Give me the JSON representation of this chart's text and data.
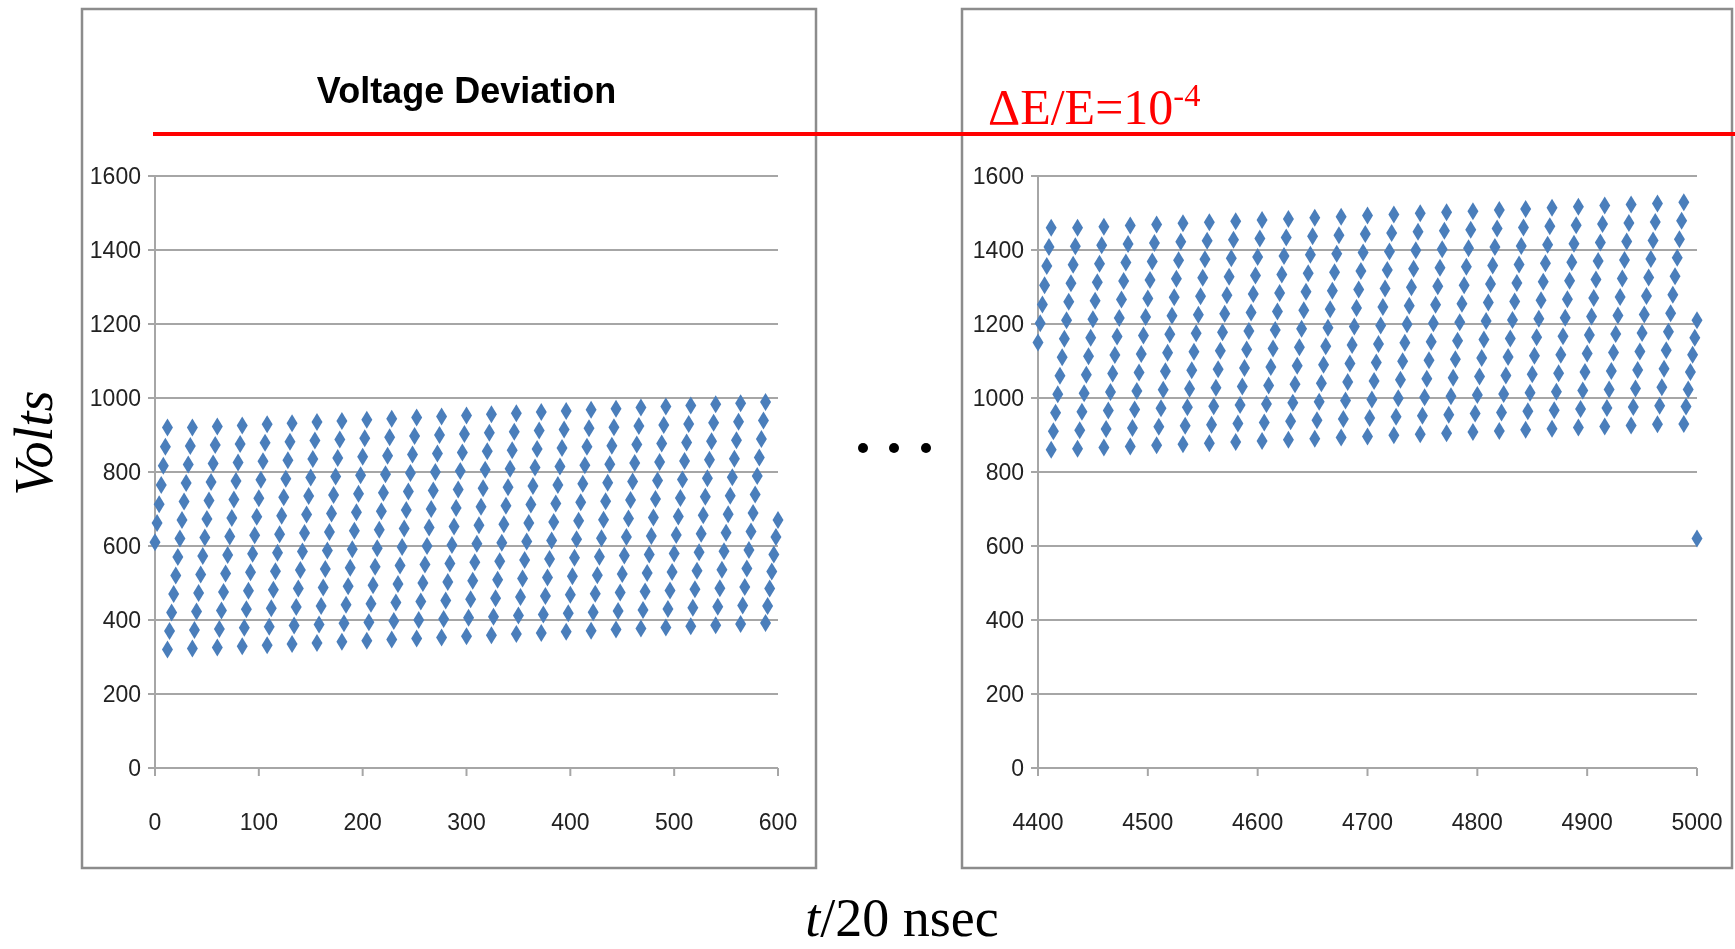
{
  "chart_data": [
    {
      "type": "scatter",
      "title": "Voltage Deviation",
      "xlabel": "t/20 nsec",
      "ylabel": "Volts",
      "xlim": [
        0,
        600
      ],
      "ylim": [
        0,
        1600
      ],
      "xticks": [
        0,
        100,
        200,
        300,
        400,
        500,
        600
      ],
      "yticks": [
        0,
        200,
        400,
        600,
        800,
        1000,
        1200,
        1400,
        1600
      ],
      "grid": "y",
      "marker": "diamond",
      "series": [
        {
          "color": "#4a7ebb",
          "x": [
            0,
            2,
            4,
            6,
            8,
            10,
            12,
            12,
            14,
            16,
            18,
            20,
            22,
            24,
            26,
            28,
            30,
            32,
            34,
            36,
            36,
            38,
            40,
            42,
            44,
            46,
            48,
            50,
            52,
            54,
            56,
            58,
            60,
            60,
            62,
            64,
            66,
            68,
            70,
            72,
            74,
            76,
            78,
            80,
            82,
            84,
            84,
            86,
            88,
            90,
            92,
            94,
            96,
            98,
            100,
            102,
            104,
            106,
            108,
            108,
            110,
            112,
            114,
            116,
            118,
            120,
            122,
            124,
            126,
            128,
            130,
            132,
            132,
            134,
            136,
            138,
            140,
            142,
            144,
            146,
            148,
            150,
            152,
            154,
            156,
            156,
            158,
            160,
            162,
            164,
            166,
            168,
            170,
            172,
            174,
            176,
            178,
            180,
            180,
            182,
            184,
            186,
            188,
            190,
            192,
            194,
            196,
            198,
            200,
            202,
            204,
            204,
            206,
            208,
            210,
            212,
            214,
            216,
            218,
            220,
            222,
            224,
            226,
            228,
            228,
            230,
            232,
            234,
            236,
            238,
            240,
            242,
            244,
            246,
            248,
            250,
            252,
            252,
            254,
            256,
            258,
            260,
            262,
            264,
            266,
            268,
            270,
            272,
            274,
            276,
            276,
            278,
            280,
            282,
            284,
            286,
            288,
            290,
            292,
            294,
            296,
            298,
            300,
            300,
            302,
            304,
            306,
            308,
            310,
            312,
            314,
            316,
            318,
            320,
            322,
            324,
            324,
            326,
            328,
            330,
            332,
            334,
            336,
            338,
            340,
            342,
            344,
            346,
            348,
            348,
            350,
            352,
            354,
            356,
            358,
            360,
            362,
            364,
            366,
            368,
            370,
            372,
            372,
            374,
            376,
            378,
            380,
            382,
            384,
            386,
            388,
            390,
            392,
            394,
            396,
            396,
            398,
            400,
            402,
            404,
            406,
            408,
            410,
            412,
            414,
            416,
            418,
            420,
            420,
            422,
            424,
            426,
            428,
            430,
            432,
            434,
            436,
            438,
            440,
            442,
            444,
            444,
            446,
            448,
            450,
            452,
            454,
            456,
            458,
            460,
            462,
            464,
            466,
            468,
            468,
            470,
            472,
            474,
            476,
            478,
            480,
            482,
            484,
            486,
            488,
            490,
            492,
            492,
            494,
            496,
            498,
            500,
            502,
            504,
            506,
            508,
            510,
            512,
            514,
            516,
            516,
            518,
            520,
            522,
            524,
            526,
            528,
            530,
            532,
            534,
            536,
            538,
            540,
            540,
            542,
            544,
            546,
            548,
            550,
            552,
            554,
            556,
            558,
            560,
            562,
            564,
            564,
            566,
            568,
            570,
            572,
            574,
            576,
            578,
            580,
            582,
            584,
            586,
            588,
            588,
            590,
            592,
            594,
            596,
            598,
            600
          ],
          "values": [
            610,
            662,
            713,
            765,
            817,
            868,
            920,
            320,
            370,
            420,
            470,
            520,
            570,
            620,
            670,
            720,
            770,
            820,
            870,
            920,
            323,
            373,
            423,
            473,
            523,
            573,
            623,
            673,
            723,
            773,
            823,
            873,
            923,
            326,
            376,
            426,
            476,
            526,
            576,
            626,
            676,
            726,
            776,
            826,
            876,
            926,
            329,
            379,
            429,
            479,
            529,
            579,
            629,
            679,
            729,
            779,
            829,
            879,
            929,
            332,
            382,
            432,
            482,
            532,
            582,
            632,
            682,
            732,
            782,
            832,
            882,
            932,
            335,
            385,
            435,
            485,
            535,
            585,
            635,
            685,
            735,
            785,
            835,
            885,
            935,
            338,
            388,
            438,
            488,
            538,
            588,
            638,
            688,
            738,
            788,
            838,
            888,
            938,
            341,
            391,
            441,
            491,
            541,
            591,
            641,
            691,
            741,
            791,
            841,
            891,
            941,
            344,
            394,
            444,
            494,
            544,
            594,
            644,
            694,
            744,
            794,
            844,
            894,
            944,
            347,
            397,
            447,
            497,
            547,
            597,
            647,
            697,
            747,
            797,
            847,
            897,
            947,
            350,
            400,
            450,
            500,
            550,
            600,
            650,
            700,
            750,
            800,
            850,
            900,
            950,
            353,
            403,
            453,
            503,
            553,
            603,
            653,
            703,
            753,
            803,
            853,
            903,
            953,
            356,
            406,
            456,
            506,
            556,
            606,
            656,
            706,
            756,
            806,
            856,
            906,
            956,
            359,
            409,
            459,
            509,
            559,
            609,
            659,
            709,
            759,
            809,
            859,
            909,
            959,
            362,
            412,
            462,
            512,
            562,
            612,
            662,
            712,
            762,
            812,
            862,
            912,
            962,
            365,
            415,
            465,
            515,
            565,
            615,
            665,
            715,
            765,
            815,
            865,
            915,
            965,
            368,
            418,
            468,
            518,
            568,
            618,
            668,
            718,
            768,
            818,
            868,
            918,
            968,
            371,
            421,
            471,
            521,
            571,
            621,
            671,
            721,
            771,
            821,
            871,
            921,
            971,
            374,
            424,
            474,
            524,
            574,
            624,
            674,
            724,
            774,
            824,
            874,
            924,
            974,
            377,
            427,
            477,
            527,
            577,
            627,
            677,
            727,
            777,
            827,
            877,
            927,
            977,
            380,
            430,
            480,
            530,
            580,
            630,
            680,
            730,
            780,
            830,
            880,
            930,
            980,
            383,
            433,
            483,
            533,
            583,
            633,
            683,
            733,
            783,
            833,
            883,
            933,
            983,
            386,
            436,
            486,
            536,
            586,
            636,
            686,
            736,
            786,
            836,
            886,
            936,
            986,
            389,
            439,
            489,
            539,
            589,
            639,
            689,
            739,
            789,
            839,
            889,
            939,
            989,
            392,
            438,
            485,
            531,
            577,
            624,
            670
          ]
        }
      ]
    },
    {
      "type": "scatter",
      "annotations": [
        "ΔE/E=10$^{-4}$"
      ],
      "xlim": [
        4400,
        5000
      ],
      "ylim": [
        0,
        1600
      ],
      "xticks": [
        4400,
        4500,
        4600,
        4700,
        4800,
        4900,
        5000
      ],
      "yticks": [
        0,
        200,
        400,
        600,
        800,
        1000,
        1200,
        1400,
        1600
      ],
      "grid": "y",
      "marker": "diamond",
      "series": [
        {
          "color": "#4a7ebb",
          "x": [
            4400,
            4402,
            4404,
            4406,
            4408,
            4410,
            4412,
            4412,
            4414,
            4416,
            4418,
            4420,
            4422,
            4424,
            4426,
            4428,
            4430,
            4432,
            4434,
            4436,
            4436,
            4438,
            4440,
            4442,
            4444,
            4446,
            4448,
            4450,
            4452,
            4454,
            4456,
            4458,
            4460,
            4460,
            4462,
            4464,
            4466,
            4468,
            4470,
            4472,
            4474,
            4476,
            4478,
            4480,
            4482,
            4484,
            4484,
            4486,
            4488,
            4490,
            4492,
            4494,
            4496,
            4498,
            4500,
            4502,
            4504,
            4506,
            4508,
            4508,
            4510,
            4512,
            4514,
            4516,
            4518,
            4520,
            4522,
            4524,
            4526,
            4528,
            4530,
            4532,
            4532,
            4534,
            4536,
            4538,
            4540,
            4542,
            4544,
            4546,
            4548,
            4550,
            4552,
            4554,
            4556,
            4556,
            4558,
            4560,
            4562,
            4564,
            4566,
            4568,
            4570,
            4572,
            4574,
            4576,
            4578,
            4580,
            4580,
            4582,
            4584,
            4586,
            4588,
            4590,
            4592,
            4594,
            4596,
            4598,
            4600,
            4602,
            4604,
            4604,
            4606,
            4608,
            4610,
            4612,
            4614,
            4616,
            4618,
            4620,
            4622,
            4624,
            4626,
            4628,
            4628,
            4630,
            4632,
            4634,
            4636,
            4638,
            4640,
            4642,
            4644,
            4646,
            4648,
            4650,
            4652,
            4652,
            4654,
            4656,
            4658,
            4660,
            4662,
            4664,
            4666,
            4668,
            4670,
            4672,
            4674,
            4676,
            4676,
            4678,
            4680,
            4682,
            4684,
            4686,
            4688,
            4690,
            4692,
            4694,
            4696,
            4698,
            4700,
            4700,
            4702,
            4704,
            4706,
            4708,
            4710,
            4712,
            4714,
            4716,
            4718,
            4720,
            4722,
            4724,
            4724,
            4726,
            4728,
            4730,
            4732,
            4734,
            4736,
            4738,
            4740,
            4742,
            4744,
            4746,
            4748,
            4748,
            4750,
            4752,
            4754,
            4756,
            4758,
            4760,
            4762,
            4764,
            4766,
            4768,
            4770,
            4772,
            4772,
            4774,
            4776,
            4778,
            4780,
            4782,
            4784,
            4786,
            4788,
            4790,
            4792,
            4794,
            4796,
            4796,
            4798,
            4800,
            4802,
            4804,
            4806,
            4808,
            4810,
            4812,
            4814,
            4816,
            4818,
            4820,
            4820,
            4822,
            4824,
            4826,
            4828,
            4830,
            4832,
            4834,
            4836,
            4838,
            4840,
            4842,
            4844,
            4844,
            4846,
            4848,
            4850,
            4852,
            4854,
            4856,
            4858,
            4860,
            4862,
            4864,
            4866,
            4868,
            4868,
            4870,
            4872,
            4874,
            4876,
            4878,
            4880,
            4882,
            4884,
            4886,
            4888,
            4890,
            4892,
            4892,
            4894,
            4896,
            4898,
            4900,
            4902,
            4904,
            4906,
            4908,
            4910,
            4912,
            4914,
            4916,
            4916,
            4918,
            4920,
            4922,
            4924,
            4926,
            4928,
            4930,
            4932,
            4934,
            4936,
            4938,
            4940,
            4940,
            4942,
            4944,
            4946,
            4948,
            4950,
            4952,
            4954,
            4956,
            4958,
            4960,
            4962,
            4964,
            4964,
            4966,
            4968,
            4970,
            4972,
            4974,
            4976,
            4978,
            4980,
            4982,
            4984,
            4986,
            4988,
            4988,
            4990,
            4992,
            4994,
            4996,
            4998,
            5000,
            5000
          ],
          "values": [
            1150,
            1202,
            1253,
            1305,
            1357,
            1408,
            1460,
            860,
            910,
            960,
            1010,
            1060,
            1110,
            1160,
            1210,
            1260,
            1310,
            1360,
            1410,
            1460,
            863,
            913,
            963,
            1013,
            1063,
            1113,
            1163,
            1213,
            1263,
            1313,
            1363,
            1413,
            1463,
            866,
            916,
            966,
            1016,
            1066,
            1116,
            1166,
            1216,
            1266,
            1316,
            1366,
            1416,
            1466,
            869,
            919,
            969,
            1019,
            1069,
            1119,
            1169,
            1219,
            1269,
            1319,
            1369,
            1419,
            1469,
            872,
            922,
            972,
            1022,
            1072,
            1122,
            1172,
            1222,
            1272,
            1322,
            1372,
            1422,
            1472,
            875,
            925,
            975,
            1025,
            1075,
            1125,
            1175,
            1225,
            1275,
            1325,
            1375,
            1425,
            1475,
            878,
            928,
            978,
            1028,
            1078,
            1128,
            1178,
            1228,
            1278,
            1328,
            1378,
            1428,
            1478,
            881,
            931,
            981,
            1031,
            1081,
            1131,
            1181,
            1231,
            1281,
            1331,
            1381,
            1431,
            1481,
            884,
            934,
            984,
            1034,
            1084,
            1134,
            1184,
            1234,
            1284,
            1334,
            1384,
            1434,
            1484,
            887,
            937,
            987,
            1037,
            1087,
            1137,
            1187,
            1237,
            1287,
            1337,
            1387,
            1437,
            1487,
            890,
            940,
            990,
            1040,
            1090,
            1140,
            1190,
            1240,
            1290,
            1340,
            1390,
            1440,
            1490,
            893,
            943,
            993,
            1043,
            1093,
            1143,
            1193,
            1243,
            1293,
            1343,
            1393,
            1443,
            1493,
            896,
            946,
            996,
            1046,
            1096,
            1146,
            1196,
            1246,
            1296,
            1346,
            1396,
            1446,
            1496,
            899,
            949,
            999,
            1049,
            1099,
            1149,
            1199,
            1249,
            1299,
            1349,
            1399,
            1449,
            1499,
            902,
            952,
            1002,
            1052,
            1102,
            1152,
            1202,
            1252,
            1302,
            1352,
            1402,
            1452,
            1502,
            905,
            955,
            1005,
            1055,
            1105,
            1155,
            1205,
            1255,
            1305,
            1355,
            1405,
            1455,
            1505,
            908,
            958,
            1008,
            1058,
            1108,
            1158,
            1208,
            1258,
            1308,
            1358,
            1408,
            1458,
            1508,
            911,
            961,
            1011,
            1061,
            1111,
            1161,
            1211,
            1261,
            1311,
            1361,
            1411,
            1461,
            1511,
            914,
            964,
            1014,
            1064,
            1114,
            1164,
            1214,
            1264,
            1314,
            1364,
            1414,
            1464,
            1514,
            917,
            967,
            1017,
            1067,
            1117,
            1167,
            1217,
            1267,
            1317,
            1367,
            1417,
            1467,
            1517,
            920,
            970,
            1020,
            1070,
            1120,
            1170,
            1220,
            1270,
            1320,
            1370,
            1420,
            1470,
            1520,
            923,
            973,
            1023,
            1073,
            1123,
            1173,
            1223,
            1273,
            1323,
            1373,
            1423,
            1473,
            1523,
            926,
            976,
            1026,
            1076,
            1126,
            1176,
            1226,
            1276,
            1326,
            1376,
            1426,
            1476,
            1526,
            929,
            979,
            1029,
            1079,
            1129,
            1179,
            1229,
            1279,
            1329,
            1379,
            1429,
            1479,
            1529,
            930,
            977,
            1023,
            1070,
            1117,
            1163,
            1210,
            620
          ]
        }
      ]
    }
  ]
}
